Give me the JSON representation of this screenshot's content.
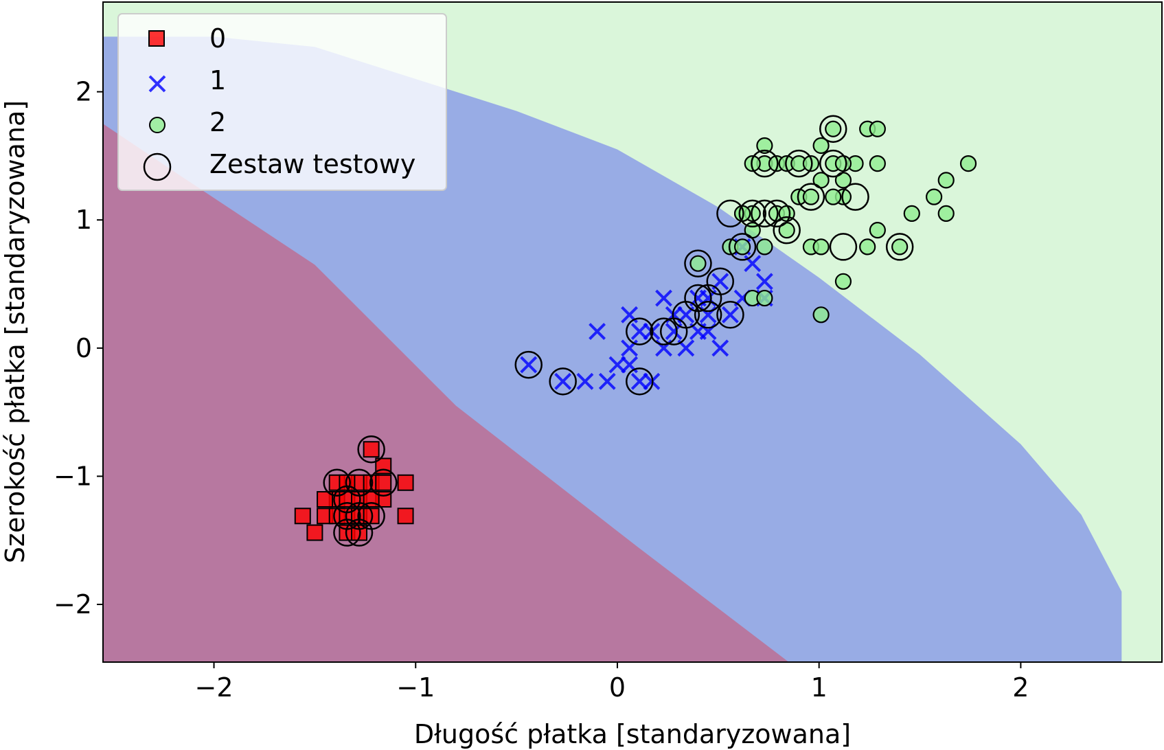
{
  "chart_data": {
    "type": "scatter",
    "title": "",
    "xlabel": "Długość płatka [standaryzowana]",
    "ylabel": "Szerokość płatka [standaryzowana]",
    "xlim": [
      -2.55,
      2.7
    ],
    "ylim": [
      -2.45,
      2.7
    ],
    "xticks": [
      -2,
      -1,
      0,
      1,
      2
    ],
    "yticks": [
      -2,
      -1,
      0,
      1,
      2
    ],
    "xtick_labels": [
      "−2",
      "−1",
      "0",
      "1",
      "2"
    ],
    "ytick_labels": [
      "−2",
      "−1",
      "0",
      "1",
      "2"
    ],
    "grid": false,
    "legend": {
      "placement": "top-left",
      "entries": [
        {
          "label": "0",
          "marker": "square",
          "color": "#ff0000"
        },
        {
          "label": "1",
          "marker": "x",
          "color": "#0000ff"
        },
        {
          "label": "2",
          "marker": "circle",
          "color": "#90ee90"
        },
        {
          "label": "Zestaw testowy",
          "marker": "open-circle",
          "color": "#000000"
        }
      ]
    },
    "regions": [
      {
        "class": "0",
        "color": "#ff0000",
        "opacity": 0.3
      },
      {
        "class": "1",
        "color": "#0000ff",
        "opacity": 0.3
      },
      {
        "class": "2",
        "color": "#32cd32",
        "opacity": 0.18
      }
    ],
    "series": [
      {
        "name": "0",
        "marker": "square",
        "color": "#ff0000",
        "points": [
          [
            -1.56,
            -1.31
          ],
          [
            -1.5,
            -1.44
          ],
          [
            -1.45,
            -1.31
          ],
          [
            -1.39,
            -1.31
          ],
          [
            -1.39,
            -1.05
          ],
          [
            -1.39,
            -1.18
          ],
          [
            -1.34,
            -1.31
          ],
          [
            -1.34,
            -1.18
          ],
          [
            -1.34,
            -1.44
          ],
          [
            -1.28,
            -1.05
          ],
          [
            -1.28,
            -1.31
          ],
          [
            -1.28,
            -1.44
          ],
          [
            -1.28,
            -1.18
          ],
          [
            -1.22,
            -1.05
          ],
          [
            -1.22,
            -0.79
          ],
          [
            -1.22,
            -1.31
          ],
          [
            -1.16,
            -1.05
          ],
          [
            -1.16,
            -1.18
          ],
          [
            -1.16,
            -0.92
          ],
          [
            -1.05,
            -1.05
          ],
          [
            -1.05,
            -1.31
          ],
          [
            -1.22,
            -1.18
          ],
          [
            -1.34,
            -1.05
          ],
          [
            -1.45,
            -1.18
          ]
        ]
      },
      {
        "name": "1",
        "marker": "x",
        "color": "#0000ff",
        "points": [
          [
            -0.44,
            -0.13
          ],
          [
            -0.27,
            -0.26
          ],
          [
            -0.16,
            -0.26
          ],
          [
            -0.1,
            0.13
          ],
          [
            -0.05,
            -0.26
          ],
          [
            0.0,
            -0.13
          ],
          [
            0.06,
            0.0
          ],
          [
            0.06,
            0.26
          ],
          [
            0.06,
            -0.13
          ],
          [
            0.11,
            0.13
          ],
          [
            0.11,
            -0.26
          ],
          [
            0.17,
            0.13
          ],
          [
            0.17,
            -0.26
          ],
          [
            0.23,
            0.0
          ],
          [
            0.23,
            0.39
          ],
          [
            0.28,
            0.13
          ],
          [
            0.34,
            0.0
          ],
          [
            0.34,
            0.26
          ],
          [
            0.4,
            0.13
          ],
          [
            0.4,
            0.39
          ],
          [
            0.45,
            0.39
          ],
          [
            0.45,
            0.13
          ],
          [
            0.51,
            0.52
          ],
          [
            0.51,
            0.0
          ],
          [
            0.56,
            0.26
          ],
          [
            0.62,
            0.39
          ],
          [
            0.62,
            0.79
          ],
          [
            0.67,
            0.66
          ],
          [
            0.73,
            0.52
          ],
          [
            0.73,
            0.39
          ],
          [
            0.28,
            0.26
          ],
          [
            0.45,
            0.26
          ]
        ]
      },
      {
        "name": "2",
        "marker": "circle",
        "color": "#90ee90",
        "points": [
          [
            0.4,
            0.66
          ],
          [
            0.56,
            0.79
          ],
          [
            0.62,
            0.79
          ],
          [
            0.62,
            1.05
          ],
          [
            0.67,
            0.39
          ],
          [
            0.67,
            1.05
          ],
          [
            0.73,
            0.79
          ],
          [
            0.73,
            1.44
          ],
          [
            0.73,
            1.58
          ],
          [
            0.73,
            0.39
          ],
          [
            0.79,
            1.05
          ],
          [
            0.79,
            1.44
          ],
          [
            0.84,
            0.92
          ],
          [
            0.84,
            1.44
          ],
          [
            0.9,
            1.18
          ],
          [
            0.9,
            1.44
          ],
          [
            0.96,
            1.18
          ],
          [
            0.96,
            0.79
          ],
          [
            1.01,
            1.58
          ],
          [
            1.01,
            1.31
          ],
          [
            1.01,
            0.79
          ],
          [
            1.01,
            0.26
          ],
          [
            1.07,
            1.44
          ],
          [
            1.07,
            1.71
          ],
          [
            1.12,
            1.18
          ],
          [
            1.12,
            0.52
          ],
          [
            1.12,
            1.31
          ],
          [
            1.18,
            1.44
          ],
          [
            1.24,
            1.71
          ],
          [
            1.24,
            0.79
          ],
          [
            1.29,
            1.71
          ],
          [
            1.29,
            1.44
          ],
          [
            1.29,
            0.92
          ],
          [
            1.4,
            0.79
          ],
          [
            1.46,
            1.05
          ],
          [
            1.57,
            1.18
          ],
          [
            1.63,
            1.31
          ],
          [
            1.63,
            1.05
          ],
          [
            1.74,
            1.44
          ],
          [
            0.84,
            1.05
          ],
          [
            1.07,
            1.18
          ],
          [
            0.96,
            1.44
          ],
          [
            1.12,
            1.44
          ],
          [
            0.67,
            1.44
          ],
          [
            0.67,
            0.92
          ],
          [
            0.62,
            1.05
          ]
        ]
      }
    ],
    "test_set": [
      [
        -1.39,
        -1.05
      ],
      [
        -1.34,
        -1.18
      ],
      [
        -1.34,
        -1.31
      ],
      [
        -1.34,
        -1.44
      ],
      [
        -1.28,
        -1.05
      ],
      [
        -1.28,
        -1.31
      ],
      [
        -1.28,
        -1.44
      ],
      [
        -1.22,
        -0.79
      ],
      [
        -1.22,
        -1.31
      ],
      [
        -1.16,
        -1.05
      ],
      [
        -0.44,
        -0.13
      ],
      [
        -0.27,
        -0.26
      ],
      [
        0.11,
        -0.26
      ],
      [
        0.11,
        0.13
      ],
      [
        0.23,
        0.13
      ],
      [
        0.28,
        0.13
      ],
      [
        0.34,
        0.26
      ],
      [
        0.4,
        0.39
      ],
      [
        0.45,
        0.39
      ],
      [
        0.45,
        0.26
      ],
      [
        0.51,
        0.52
      ],
      [
        0.56,
        0.26
      ],
      [
        0.4,
        0.66
      ],
      [
        0.56,
        1.05
      ],
      [
        0.62,
        0.79
      ],
      [
        0.67,
        1.05
      ],
      [
        0.73,
        1.05
      ],
      [
        0.79,
        1.05
      ],
      [
        0.84,
        0.92
      ],
      [
        0.73,
        1.44
      ],
      [
        0.9,
        1.44
      ],
      [
        0.96,
        1.18
      ],
      [
        1.07,
        1.44
      ],
      [
        1.07,
        1.71
      ],
      [
        1.18,
        1.18
      ],
      [
        1.12,
        0.79
      ],
      [
        1.4,
        0.79
      ]
    ]
  }
}
